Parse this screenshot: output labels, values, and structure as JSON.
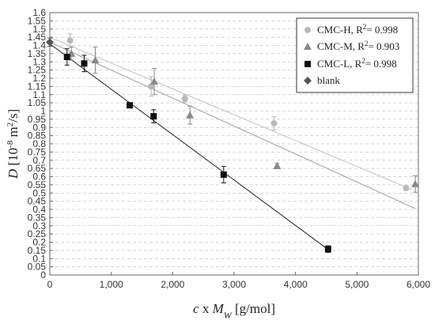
{
  "chart_data": {
    "type": "scatter",
    "xlabel": {
      "italic": "c",
      "mid": " x ",
      "italic2": "M",
      "sub": "W",
      "rest": " [g/mol]"
    },
    "ylabel": {
      "italic": "D",
      "rest1": " [10",
      "sup1": "-8",
      "rest2": " m",
      "sup2": "2",
      "rest3": "/s]"
    },
    "xlim": [
      0,
      6000
    ],
    "ylim": [
      0,
      1.6
    ],
    "x_ticks": [
      {
        "v": 0,
        "label": "0"
      },
      {
        "v": 1000,
        "label": "1,000"
      },
      {
        "v": 2000,
        "label": "2,000"
      },
      {
        "v": 3000,
        "label": "3,000"
      },
      {
        "v": 4000,
        "label": "4,000"
      },
      {
        "v": 5000,
        "label": "5,000"
      },
      {
        "v": 6000,
        "label": "6,000"
      }
    ],
    "y_ticks": [
      {
        "v": 0,
        "label": "0"
      },
      {
        "v": 0.05,
        "label": "0.05"
      },
      {
        "v": 0.1,
        "label": "0.1"
      },
      {
        "v": 0.15,
        "label": "0.15"
      },
      {
        "v": 0.2,
        "label": "0.2"
      },
      {
        "v": 0.25,
        "label": "0.25"
      },
      {
        "v": 0.3,
        "label": "0.3"
      },
      {
        "v": 0.35,
        "label": "0.35"
      },
      {
        "v": 0.4,
        "label": "0.4"
      },
      {
        "v": 0.45,
        "label": "0.45"
      },
      {
        "v": 0.5,
        "label": "0.5"
      },
      {
        "v": 0.55,
        "label": "0.55"
      },
      {
        "v": 0.6,
        "label": "0.6"
      },
      {
        "v": 0.65,
        "label": "0.65"
      },
      {
        "v": 0.7,
        "label": "0.7"
      },
      {
        "v": 0.75,
        "label": "0.75"
      },
      {
        "v": 0.8,
        "label": "0.8"
      },
      {
        "v": 0.85,
        "label": "0.85"
      },
      {
        "v": 0.9,
        "label": "0.9"
      },
      {
        "v": 0.95,
        "label": "0.95"
      },
      {
        "v": 1.0,
        "label": "1"
      },
      {
        "v": 1.05,
        "label": "1.05"
      },
      {
        "v": 1.1,
        "label": "1.1"
      },
      {
        "v": 1.15,
        "label": "1.15"
      },
      {
        "v": 1.2,
        "label": "1.2"
      },
      {
        "v": 1.25,
        "label": "1.25"
      },
      {
        "v": 1.3,
        "label": "1.3"
      },
      {
        "v": 1.35,
        "label": "1.35"
      },
      {
        "v": 1.4,
        "label": "1.4"
      },
      {
        "v": 1.45,
        "label": "1.45"
      },
      {
        "v": 1.5,
        "label": "1.5"
      },
      {
        "v": 1.55,
        "label": "1.55"
      },
      {
        "v": 1.6,
        "label": "1.6"
      }
    ],
    "grid": "horizontal dashed",
    "legend_position": "top-right",
    "series": [
      {
        "name": "CMC-H",
        "r2_prefix": ", R",
        "r2_sup": "2",
        "r2_value": "= 0.998",
        "marker": "circle",
        "color": "#b8b8b8",
        "line_color": "#c4c4c4",
        "points": [
          {
            "x": 330,
            "y": 1.43,
            "err": 0.04
          },
          {
            "x": 1650,
            "y": 1.15,
            "err": 0.06
          },
          {
            "x": 2200,
            "y": 1.075,
            "err": 0.02
          },
          {
            "x": 3650,
            "y": 0.925,
            "err": 0.04
          },
          {
            "x": 5800,
            "y": 0.53,
            "err": 0.01
          }
        ],
        "fit": {
          "x1": 0,
          "y1": 1.45,
          "x2": 5900,
          "y2": 0.52
        }
      },
      {
        "name": "CMC-M",
        "r2_prefix": ", R",
        "r2_sup": "2",
        "r2_value": "= 0.903",
        "marker": "triangle",
        "color": "#888888",
        "line_color": "#a8a8a8",
        "points": [
          {
            "x": 350,
            "y": 1.35,
            "err": 0.04
          },
          {
            "x": 740,
            "y": 1.31,
            "err": 0.08
          },
          {
            "x": 1700,
            "y": 1.18,
            "err": 0.08
          },
          {
            "x": 2280,
            "y": 0.975,
            "err": 0.055
          },
          {
            "x": 3700,
            "y": 0.665,
            "err": 0.015
          },
          {
            "x": 5950,
            "y": 0.555,
            "err": 0.05
          }
        ],
        "fit": {
          "x1": 0,
          "y1": 1.42,
          "x2": 5950,
          "y2": 0.405
        }
      },
      {
        "name": "CMC-L",
        "r2_prefix": ", R",
        "r2_sup": "2",
        "r2_value": "= 0.998",
        "marker": "square",
        "color": "#111111",
        "line_color": "#333333",
        "points": [
          {
            "x": 280,
            "y": 1.33,
            "err": 0.05
          },
          {
            "x": 560,
            "y": 1.29,
            "err": 0.05
          },
          {
            "x": 1300,
            "y": 1.035,
            "err": 0.0
          },
          {
            "x": 1690,
            "y": 0.968,
            "err": 0.04
          },
          {
            "x": 2830,
            "y": 0.612,
            "err": 0.05
          },
          {
            "x": 4530,
            "y": 0.158,
            "err": 0.02
          }
        ],
        "fit": {
          "x1": 0,
          "y1": 1.41,
          "x2": 4550,
          "y2": 0.15
        }
      },
      {
        "name": "blank",
        "marker": "diamond",
        "color": "#555555",
        "points": [
          {
            "x": 0,
            "y": 1.42,
            "err": 0.025
          }
        ]
      }
    ]
  }
}
